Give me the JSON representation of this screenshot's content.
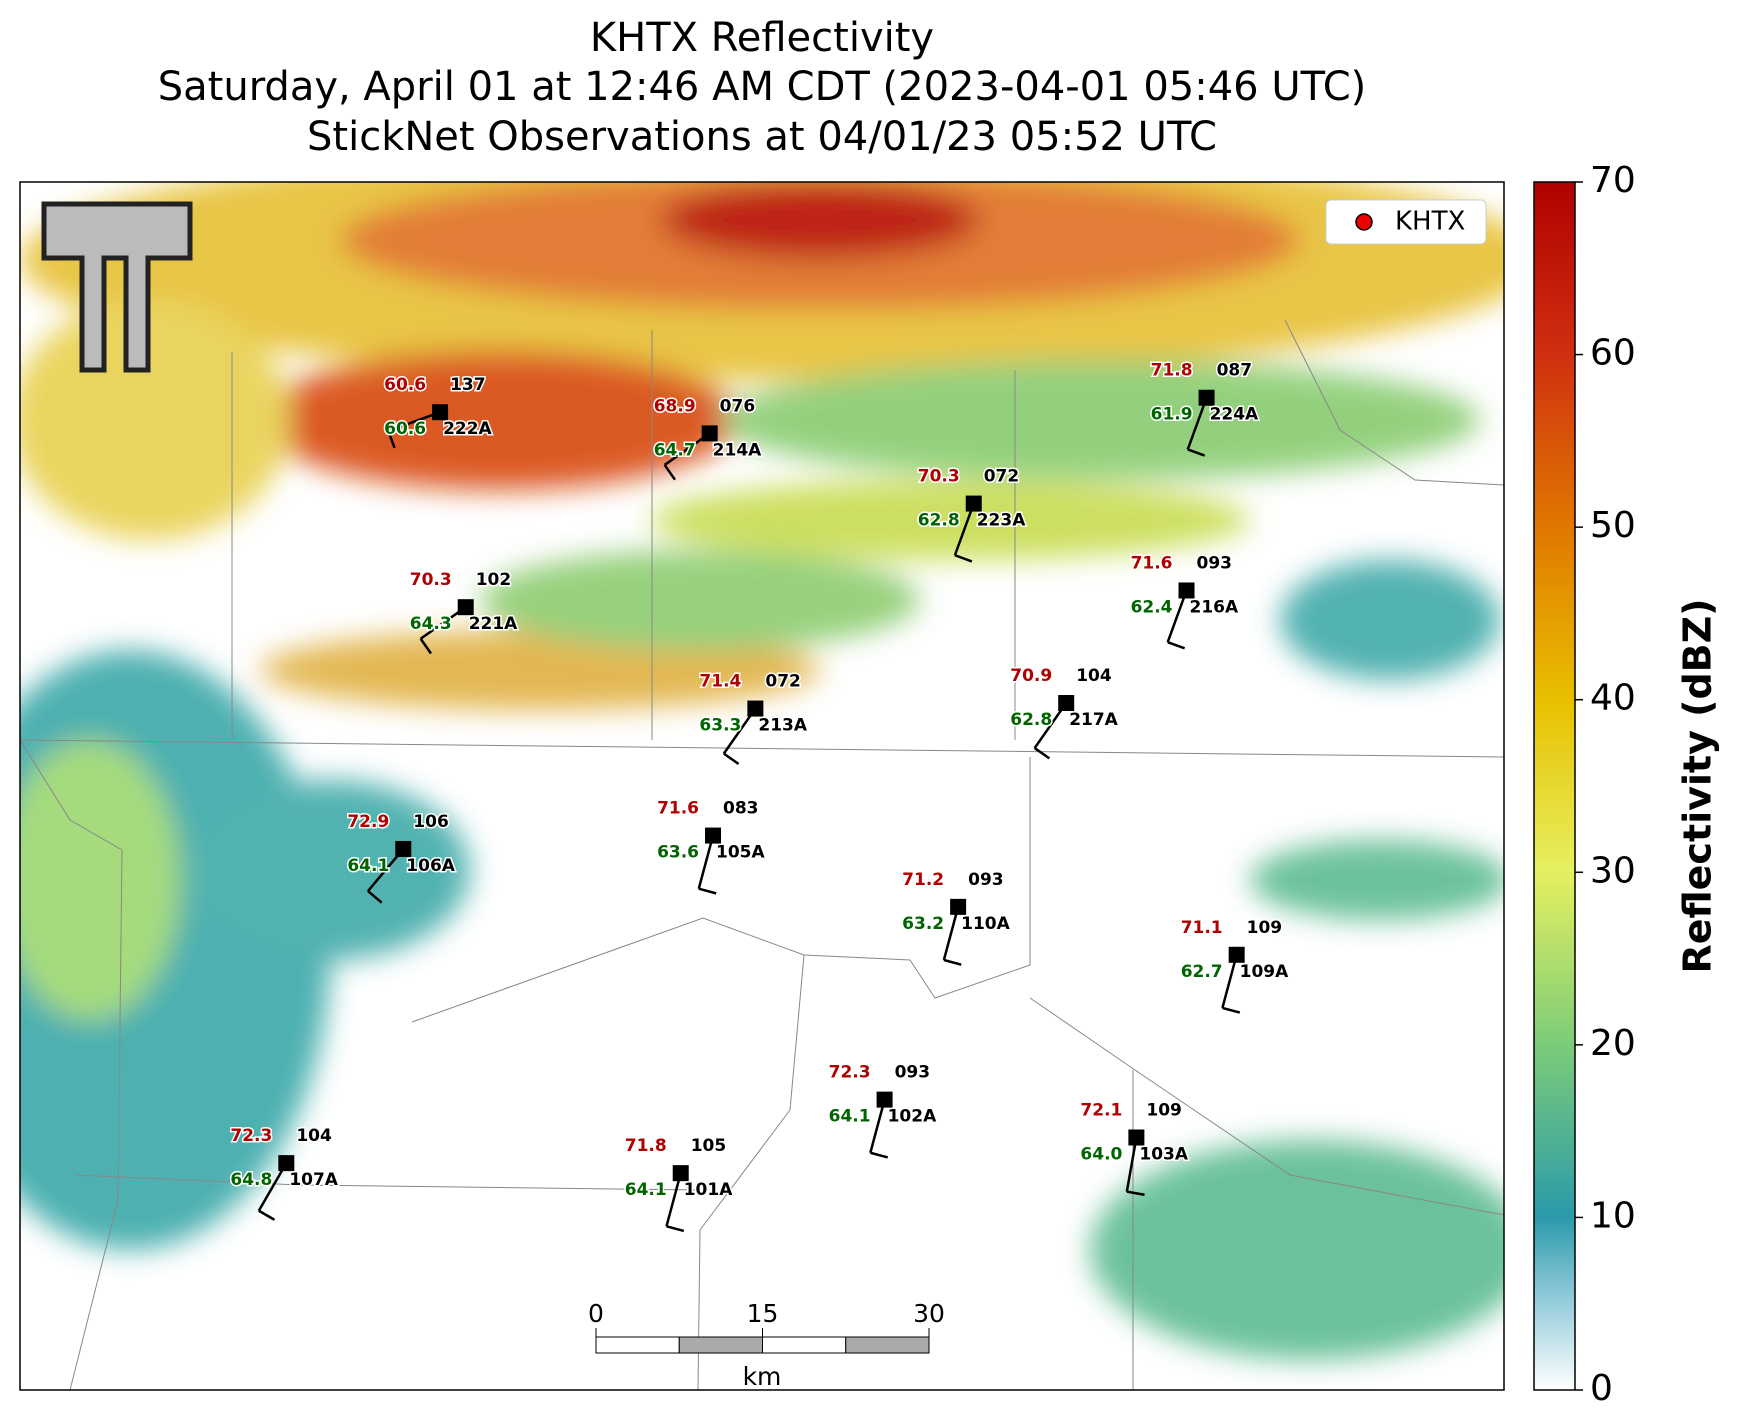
{
  "title_lines": [
    "KHTX Reflectivity",
    "Saturday, April 01 at 12:46 AM CDT (2023-04-01 05:46 UTC)",
    "StickNet Observations at 04/01/23 05:52 UTC"
  ],
  "legend": {
    "label": "KHTX"
  },
  "colorbar": {
    "label": "Reflectivity (dBZ)",
    "lim": [
      0,
      70
    ],
    "ticks": [
      0,
      10,
      20,
      30,
      40,
      50,
      60,
      70
    ]
  },
  "scale_bar": {
    "lim": [
      0,
      30
    ],
    "ticks": [
      0,
      15,
      30
    ],
    "unit": "km"
  },
  "stations": [
    {
      "id": "222A",
      "temperature": "60.6",
      "dewpoint": "60.6",
      "pressure": "137"
    },
    {
      "id": "214A",
      "temperature": "68.9",
      "dewpoint": "64.7",
      "pressure": "076"
    },
    {
      "id": "224A",
      "temperature": "71.8",
      "dewpoint": "61.9",
      "pressure": "087"
    },
    {
      "id": "223A",
      "temperature": "70.3",
      "dewpoint": "62.8",
      "pressure": "072"
    },
    {
      "id": "221A",
      "temperature": "70.3",
      "dewpoint": "64.3",
      "pressure": "102"
    },
    {
      "id": "216A",
      "temperature": "71.6",
      "dewpoint": "62.4",
      "pressure": "093"
    },
    {
      "id": "213A",
      "temperature": "71.4",
      "dewpoint": "63.3",
      "pressure": "072"
    },
    {
      "id": "217A",
      "temperature": "70.9",
      "dewpoint": "62.8",
      "pressure": "104"
    },
    {
      "id": "106A",
      "temperature": "72.9",
      "dewpoint": "64.1",
      "pressure": "106"
    },
    {
      "id": "105A",
      "temperature": "71.6",
      "dewpoint": "63.6",
      "pressure": "083"
    },
    {
      "id": "110A",
      "temperature": "71.2",
      "dewpoint": "63.2",
      "pressure": "093"
    },
    {
      "id": "109A",
      "temperature": "71.1",
      "dewpoint": "62.7",
      "pressure": "109"
    },
    {
      "id": "102A",
      "temperature": "72.3",
      "dewpoint": "64.1",
      "pressure": "093"
    },
    {
      "id": "103A",
      "temperature": "72.1",
      "dewpoint": "64.0",
      "pressure": "109"
    },
    {
      "id": "107A",
      "temperature": "72.3",
      "dewpoint": "64.8",
      "pressure": "104"
    },
    {
      "id": "101A",
      "temperature": "71.8",
      "dewpoint": "64.1",
      "pressure": "105"
    }
  ]
}
